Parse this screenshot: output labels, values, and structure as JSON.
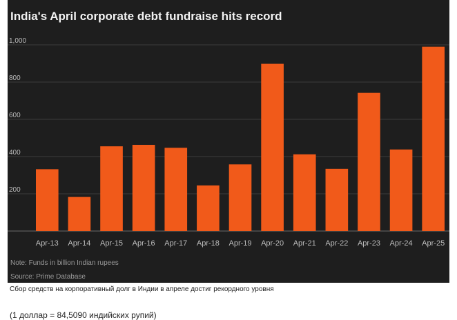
{
  "chart_data": {
    "type": "bar",
    "title": "India's April corporate debt fundraise hits record",
    "categories": [
      "Apr-13",
      "Apr-14",
      "Apr-15",
      "Apr-16",
      "Apr-17",
      "Apr-18",
      "Apr-19",
      "Apr-20",
      "Apr-21",
      "Apr-22",
      "Apr-23",
      "Apr-24",
      "Apr-25"
    ],
    "values": [
      332,
      183,
      455,
      463,
      447,
      245,
      358,
      898,
      412,
      334,
      742,
      438,
      990
    ],
    "yticks": [
      200,
      400,
      600,
      800,
      1000
    ],
    "ytick_labels": [
      "200",
      "400",
      "600",
      "800",
      "1,000"
    ],
    "ylim": [
      0,
      1000
    ],
    "grid": true,
    "bar_color": "#f15a1a",
    "xlabel": "",
    "ylabel": ""
  },
  "notes": {
    "funds": "Note: Funds in billion Indian rupees",
    "source": "Source: Prime Database"
  },
  "caption": "Сбор средств на корпоративный долг в Индии в апреле достиг рекордного уровня",
  "exchange_note": "(1 доллар = 84,5090 индийских рупий)",
  "colors": {
    "panel_background": "#1e1e1e",
    "gridline": "#3c3c3c",
    "axis_text": "#bdbdbd"
  }
}
